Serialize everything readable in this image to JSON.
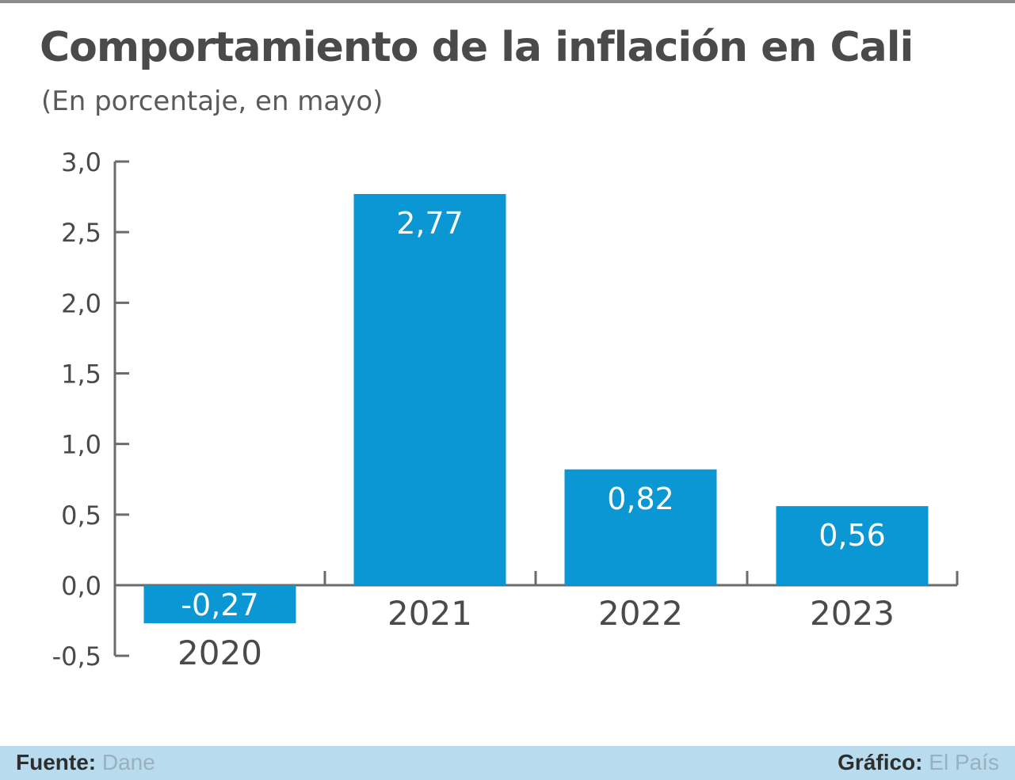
{
  "header": {
    "title": "Comportamiento de la inflación en Cali",
    "subtitle": "(En porcentaje, en mayo)"
  },
  "footer": {
    "source_label": "Fuente:",
    "source_value": "Dane",
    "credit_label": "Gráfico:",
    "credit_value": "El País"
  },
  "colors": {
    "bar": "#0b96d4",
    "bar_label": "#ffffff",
    "axis": "#6b6b6b",
    "text": "#4a4a4a",
    "footer_band": "#b8dbee"
  },
  "chart_data": {
    "type": "bar",
    "title": "Comportamiento de la inflación en Cali",
    "subtitle": "(En porcentaje, en mayo)",
    "categories": [
      "2020",
      "2021",
      "2022",
      "2023"
    ],
    "values": [
      -0.27,
      2.77,
      0.82,
      0.56
    ],
    "value_labels": [
      "-0,27",
      "2,77",
      "0,82",
      "0,56"
    ],
    "ylim": [
      -0.5,
      3.0
    ],
    "yticks": [
      -0.5,
      0.0,
      0.5,
      1.0,
      1.5,
      2.0,
      2.5,
      3.0
    ],
    "ytick_labels": [
      "-0,5",
      "0,0",
      "0,5",
      "1,0",
      "1,5",
      "2,0",
      "2,5",
      "3,0"
    ],
    "grid": false,
    "legend": "none"
  }
}
